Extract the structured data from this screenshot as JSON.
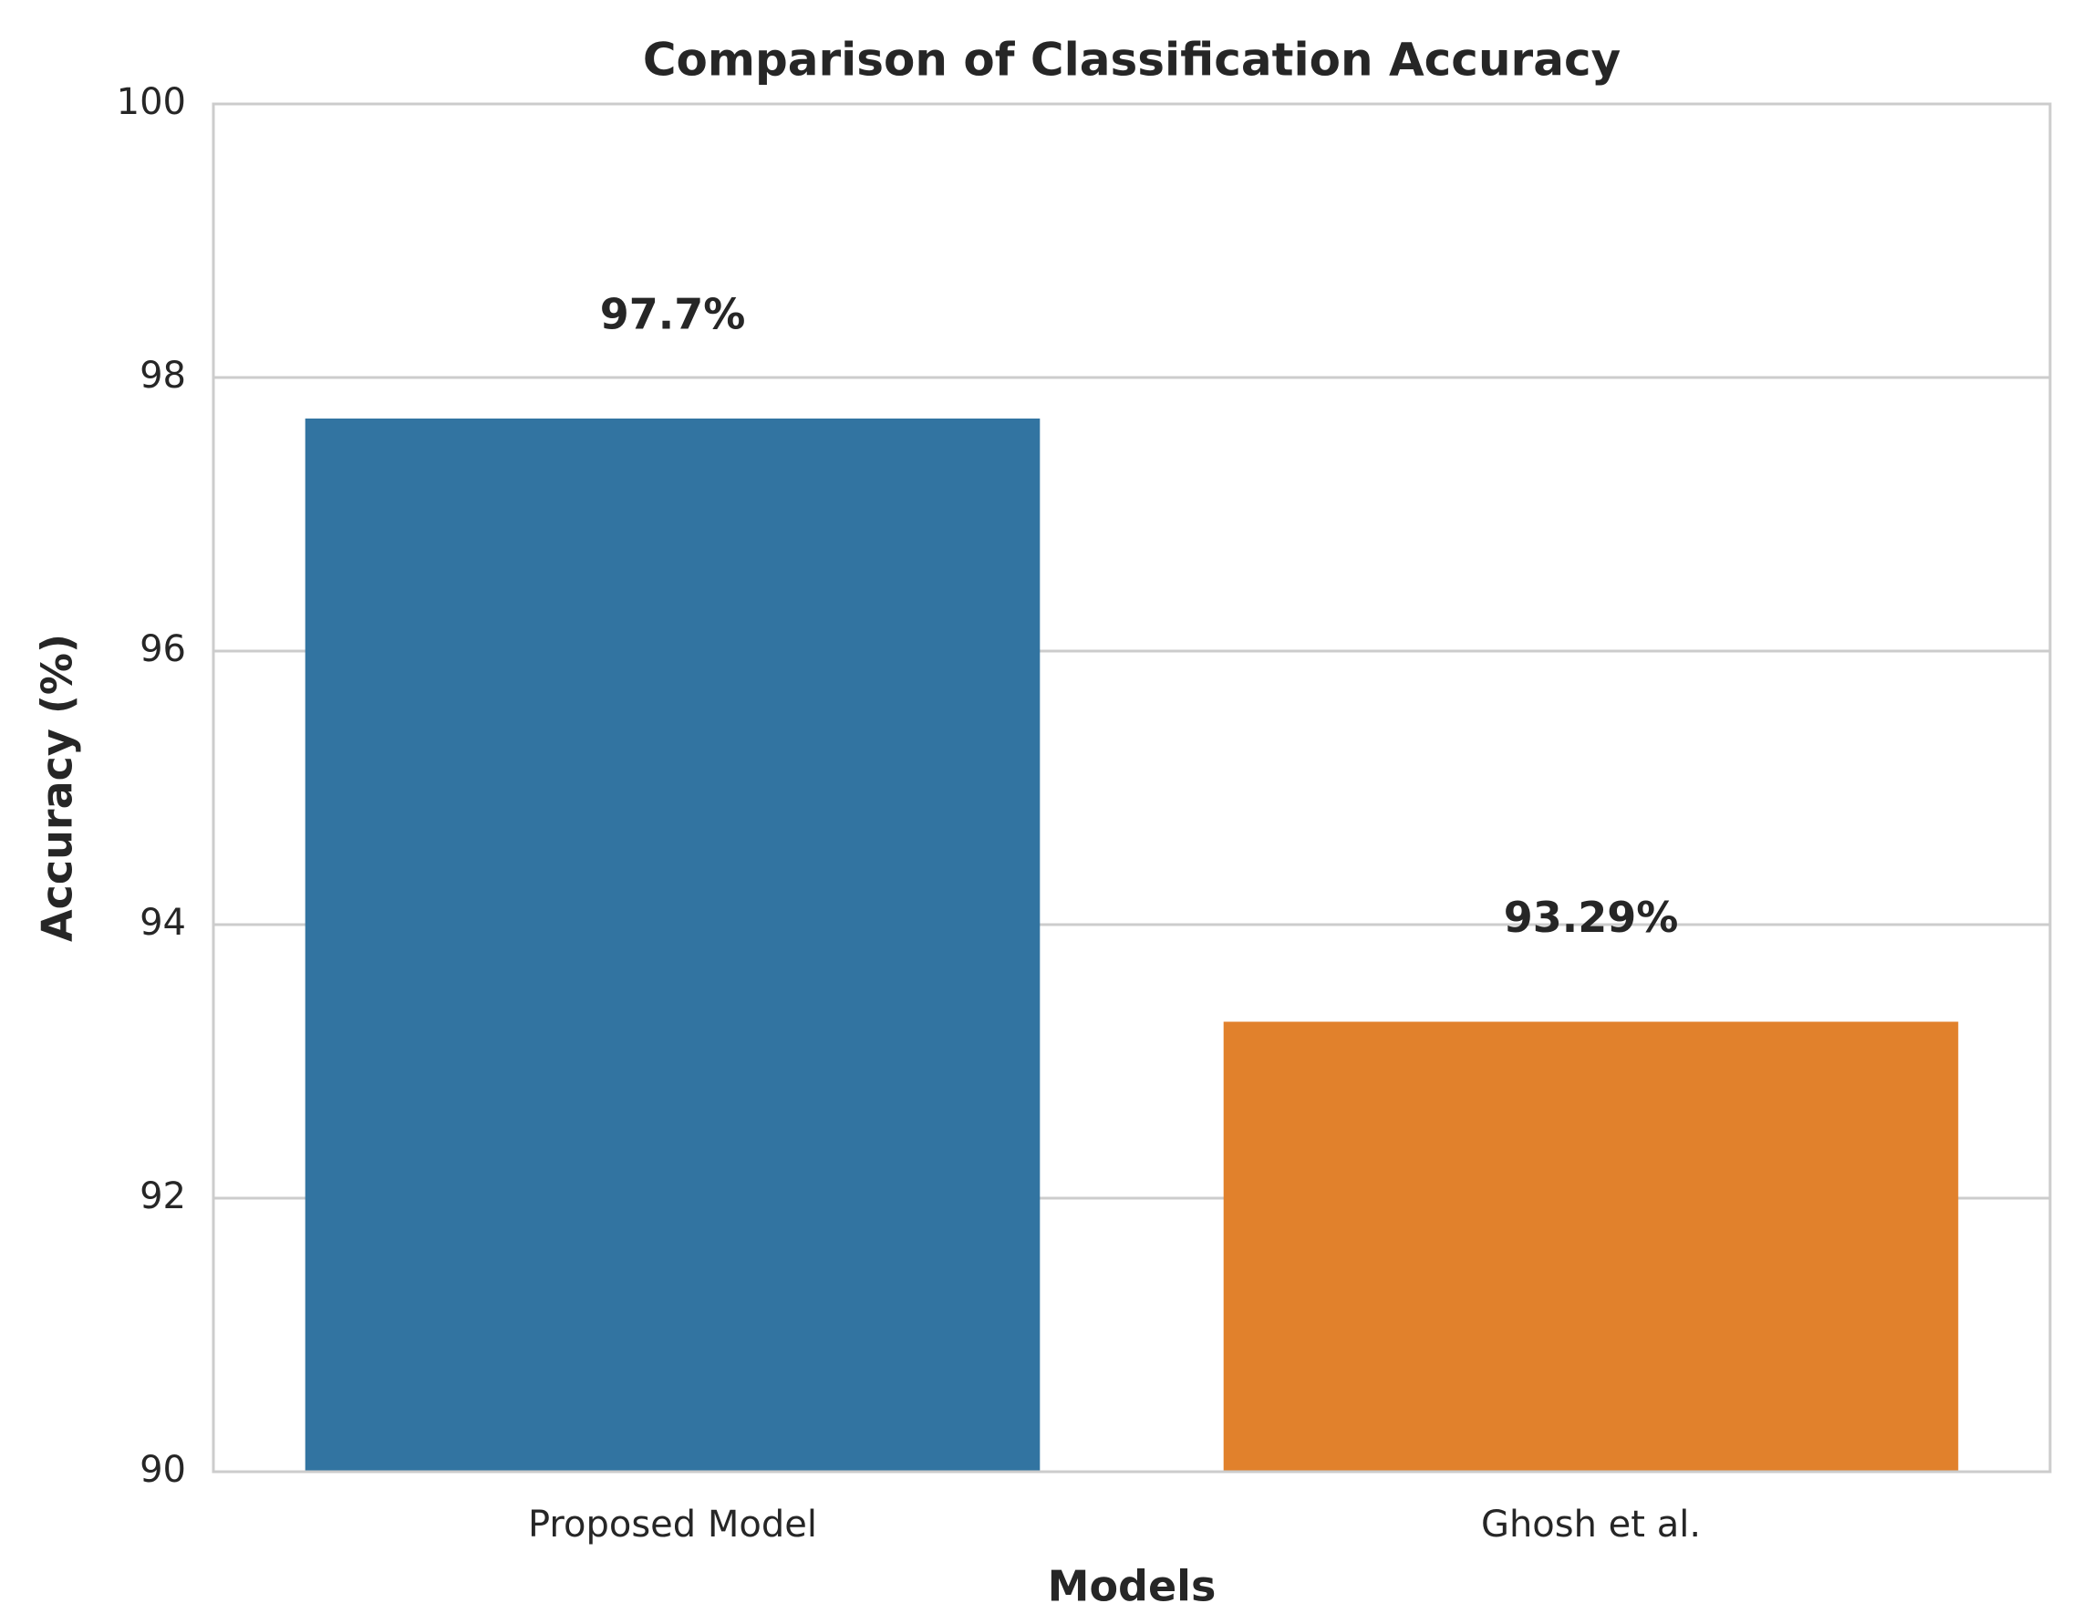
{
  "chart_data": {
    "type": "bar",
    "title": "Comparison of Classification Accuracy",
    "x_label": "Models",
    "y_label": "Accuracy (%)",
    "categories": [
      "Proposed Model",
      "Ghosh et al."
    ],
    "values": [
      97.7,
      93.29
    ],
    "value_labels": [
      "97.7%",
      "93.29%"
    ],
    "colors": [
      "#3274a1",
      "#e1812c"
    ],
    "ylim": [
      90,
      100
    ],
    "yticks": [
      90,
      92,
      94,
      96,
      98,
      100
    ],
    "grid": true
  }
}
